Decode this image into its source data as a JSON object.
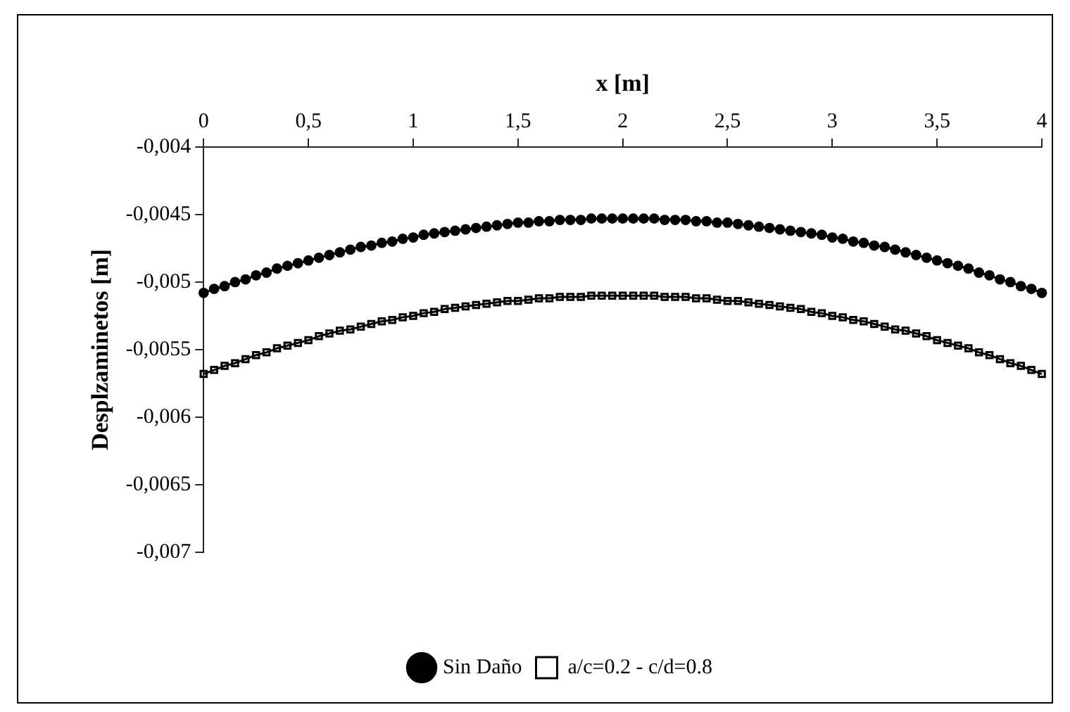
{
  "chart_data": {
    "type": "line",
    "xlabel": "x [m]",
    "ylabel": "Desplzaminetos [m]",
    "x": [
      0,
      0.05,
      0.1,
      0.15,
      0.2,
      0.25,
      0.3,
      0.35,
      0.4,
      0.45,
      0.5,
      0.55,
      0.6,
      0.65,
      0.7,
      0.75,
      0.8,
      0.85,
      0.9,
      0.95,
      1,
      1.05,
      1.1,
      1.15,
      1.2,
      1.25,
      1.3,
      1.35,
      1.4,
      1.45,
      1.5,
      1.55,
      1.6,
      1.65,
      1.7,
      1.75,
      1.8,
      1.85,
      1.9,
      1.95,
      2,
      2.05,
      2.1,
      2.15,
      2.2,
      2.25,
      2.3,
      2.35,
      2.4,
      2.45,
      2.5,
      2.55,
      2.6,
      2.65,
      2.7,
      2.75,
      2.8,
      2.85,
      2.9,
      2.95,
      3,
      3.05,
      3.1,
      3.15,
      3.2,
      3.25,
      3.3,
      3.35,
      3.4,
      3.45,
      3.5,
      3.55,
      3.6,
      3.65,
      3.7,
      3.75,
      3.8,
      3.85,
      3.9,
      3.95,
      4
    ],
    "series": [
      {
        "name": "Sin Daño",
        "color": "#000000",
        "marker": "circle",
        "values": [
          -0.00508,
          -0.00505,
          -0.00503,
          -0.005,
          -0.00498,
          -0.00495,
          -0.00493,
          -0.0049,
          -0.00488,
          -0.00486,
          -0.00484,
          -0.00482,
          -0.0048,
          -0.00478,
          -0.00476,
          -0.00474,
          -0.00473,
          -0.00471,
          -0.0047,
          -0.00468,
          -0.00467,
          -0.00465,
          -0.00464,
          -0.00463,
          -0.00462,
          -0.00461,
          -0.0046,
          -0.00459,
          -0.00458,
          -0.00457,
          -0.00456,
          -0.00456,
          -0.00455,
          -0.00455,
          -0.00454,
          -0.00454,
          -0.00454,
          -0.00453,
          -0.00453,
          -0.00453,
          -0.00453,
          -0.00453,
          -0.00453,
          -0.00453,
          -0.00454,
          -0.00454,
          -0.00454,
          -0.00455,
          -0.00455,
          -0.00456,
          -0.00456,
          -0.00457,
          -0.00458,
          -0.00459,
          -0.0046,
          -0.00461,
          -0.00462,
          -0.00463,
          -0.00464,
          -0.00465,
          -0.00467,
          -0.00468,
          -0.0047,
          -0.00471,
          -0.00473,
          -0.00474,
          -0.00476,
          -0.00478,
          -0.0048,
          -0.00482,
          -0.00484,
          -0.00486,
          -0.00488,
          -0.0049,
          -0.00493,
          -0.00495,
          -0.00498,
          -0.005,
          -0.00503,
          -0.00505,
          -0.00508
        ]
      },
      {
        "name": "a/c=0.2 - c/d=0.8",
        "color": "#000000",
        "marker": "square",
        "values": [
          -0.00568,
          -0.00565,
          -0.00562,
          -0.0056,
          -0.00557,
          -0.00554,
          -0.00552,
          -0.00549,
          -0.00547,
          -0.00545,
          -0.00543,
          -0.0054,
          -0.00538,
          -0.00536,
          -0.00535,
          -0.00533,
          -0.00531,
          -0.00529,
          -0.00528,
          -0.00526,
          -0.00525,
          -0.00523,
          -0.00522,
          -0.0052,
          -0.00519,
          -0.00518,
          -0.00517,
          -0.00516,
          -0.00515,
          -0.00514,
          -0.00514,
          -0.00513,
          -0.00512,
          -0.00512,
          -0.00511,
          -0.00511,
          -0.00511,
          -0.0051,
          -0.0051,
          -0.0051,
          -0.0051,
          -0.0051,
          -0.0051,
          -0.0051,
          -0.00511,
          -0.00511,
          -0.00511,
          -0.00512,
          -0.00512,
          -0.00513,
          -0.00514,
          -0.00514,
          -0.00515,
          -0.00516,
          -0.00517,
          -0.00518,
          -0.00519,
          -0.0052,
          -0.00522,
          -0.00523,
          -0.00525,
          -0.00526,
          -0.00528,
          -0.00529,
          -0.00531,
          -0.00533,
          -0.00535,
          -0.00536,
          -0.00538,
          -0.0054,
          -0.00543,
          -0.00545,
          -0.00547,
          -0.00549,
          -0.00552,
          -0.00554,
          -0.00557,
          -0.0056,
          -0.00562,
          -0.00565,
          -0.00568
        ]
      }
    ],
    "xlim": [
      0,
      4
    ],
    "xticks": [
      0,
      {
        "value": 0.5,
        "label": "0,5"
      },
      1,
      {
        "value": 1.5,
        "label": "1,5"
      },
      2,
      {
        "value": 2.5,
        "label": "2,5"
      },
      3,
      {
        "value": 3.5,
        "label": "3,5"
      },
      4
    ],
    "ylim": [
      -0.007,
      -0.004
    ],
    "yticks": [
      {
        "value": -0.007,
        "label": "-0,007"
      },
      {
        "value": -0.0065,
        "label": "-0,0065"
      },
      {
        "value": -0.006,
        "label": "-0,006"
      },
      {
        "value": -0.0055,
        "label": "-0,0055"
      },
      {
        "value": -0.005,
        "label": "-0,005"
      },
      {
        "value": -0.0045,
        "label": "-0,0045"
      },
      {
        "value": -0.004,
        "label": "-0,004"
      }
    ],
    "grid": false,
    "legend": "bottom",
    "line_style": "solid"
  }
}
